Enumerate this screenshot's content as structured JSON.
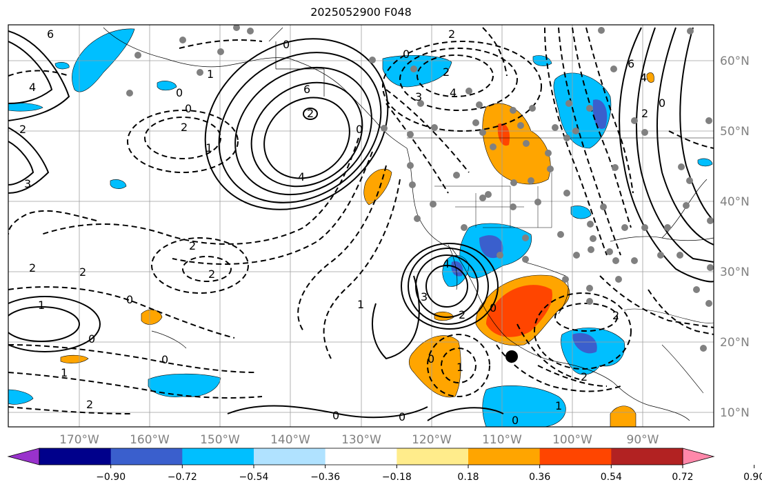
{
  "title": "2025052900 F048",
  "map": {
    "lon_labels": [
      "170°W",
      "160°W",
      "150°W",
      "140°W",
      "130°W",
      "120°W",
      "110°W",
      "100°W",
      "90°W"
    ],
    "lat_labels": [
      "60°N",
      "50°N",
      "40°N",
      "30°N",
      "20°N",
      "10°N"
    ],
    "contour_labels": [
      "6",
      "2",
      "4",
      "0",
      "2",
      "0",
      "1",
      "2",
      "0",
      "6",
      "2",
      "4",
      "2",
      "0",
      "3",
      "4",
      "2",
      "0",
      "1",
      "2",
      "2",
      "0",
      "1",
      "2",
      "0",
      "1",
      "0",
      "4",
      "3",
      "2",
      "1",
      "0",
      "0",
      "1",
      "2",
      "0",
      "0",
      "6",
      "4",
      "2",
      "0",
      "2",
      "1",
      "2",
      "0",
      "3"
    ],
    "fill_colors": {
      "dark_orange": "#ff4500",
      "orange": "#ffa500",
      "light_blue": "#00bfff",
      "mid_blue": "#3a5fcd",
      "pink": "#ff88aa"
    }
  },
  "colorbar": {
    "colors": [
      "#9932cc",
      "#00008b",
      "#3a5fcd",
      "#00bfff",
      "#b0e2ff",
      "#ffffff",
      "#ffec8b",
      "#ffa500",
      "#ff4500",
      "#b22222",
      "#ff88aa"
    ],
    "tick_labels": [
      "−0.90",
      "−0.72",
      "−0.54",
      "−0.36",
      "−0.18",
      "0.18",
      "0.36",
      "0.54",
      "0.72",
      "0.90"
    ]
  }
}
